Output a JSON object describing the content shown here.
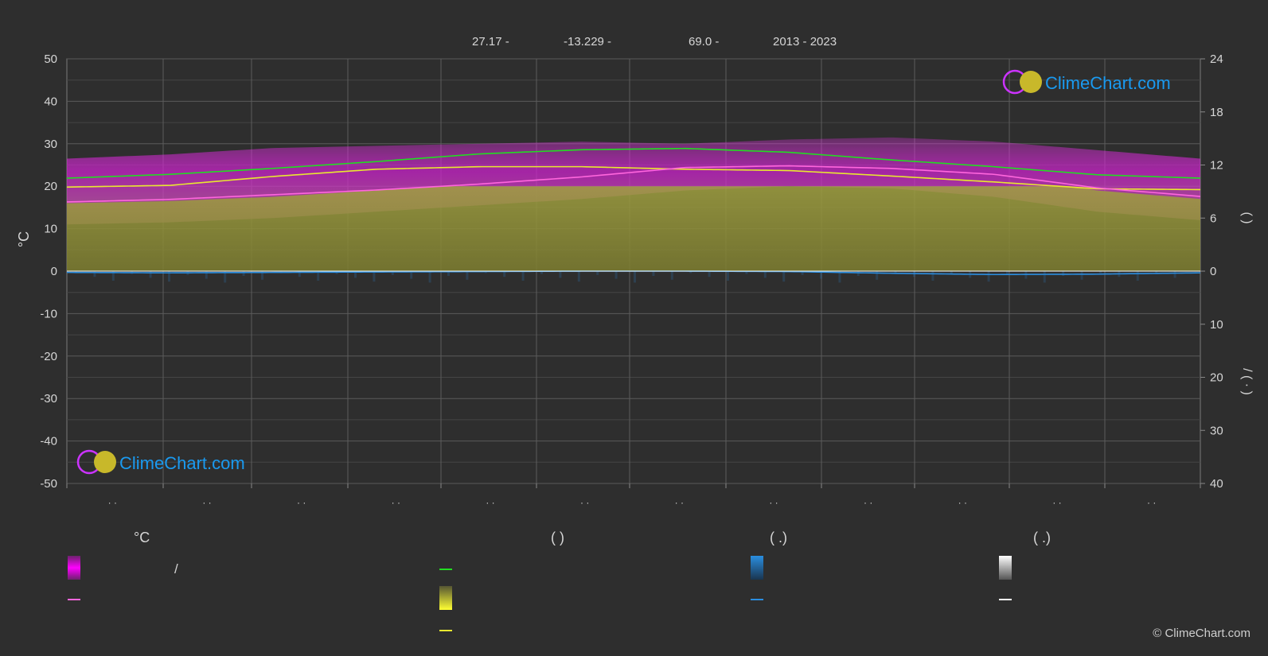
{
  "header": {
    "latitude": "27.17 -",
    "longitude": "-13.229 -",
    "elevation": "69.0 -",
    "years": "2013 - 2023"
  },
  "chart_data": {
    "type": "area",
    "months": [
      "· ·",
      "· ·",
      "· ·",
      "· ·",
      "· ·",
      "· ·",
      "· ·",
      "· ·",
      "· ·",
      "· ·",
      "· ·",
      "· ·"
    ],
    "left_axis": {
      "label": "°C",
      "ylim": [
        -50,
        50
      ],
      "ticks": [
        "50",
        "40",
        "30",
        "20",
        "10",
        "0",
        "-10",
        "-20",
        "-30",
        "-40",
        "-50"
      ]
    },
    "right_axis_top": {
      "label": "(     )",
      "ylim": [
        0,
        24
      ],
      "ticks": [
        "24",
        "18",
        "12",
        "6",
        "0"
      ]
    },
    "right_axis_bottom": {
      "label": "/     ( · )",
      "ylim": [
        0,
        40
      ],
      "ticks": [
        "0",
        "10",
        "20",
        "30",
        "40"
      ]
    },
    "grid": true,
    "series": [
      {
        "key": "daylight",
        "color": "#22dd22",
        "values": [
          21.9,
          22.8,
          24.2,
          25.8,
          27.6,
          28.6,
          28.9,
          28.0,
          26.2,
          24.6,
          22.7,
          21.9
        ]
      },
      {
        "key": "sunshine",
        "color": "#e8e830",
        "values": [
          19.8,
          20.2,
          22.3,
          24.0,
          24.6,
          24.6,
          24.0,
          23.7,
          22.4,
          21.0,
          19.4,
          19.2
        ]
      },
      {
        "key": "mean_temp",
        "color": "#ff66dd",
        "values": [
          16.3,
          16.9,
          18.0,
          19.1,
          20.5,
          22.2,
          24.4,
          24.8,
          24.2,
          22.8,
          19.6,
          17.6
        ]
      },
      {
        "key": "precipitation",
        "color": "#2a8ee0",
        "values": [
          -0.3,
          -0.4,
          -0.3,
          -0.2,
          -0.1,
          0.0,
          0.0,
          -0.1,
          -0.5,
          -0.8,
          -0.7,
          -0.4
        ]
      },
      {
        "key": "snow_mean",
        "color": "#ffffff",
        "values": [
          0,
          0,
          0,
          0,
          0,
          0,
          0,
          0,
          0,
          0,
          0,
          0
        ]
      }
    ],
    "bands": {
      "temp_max": [
        26.5,
        27.5,
        29.0,
        29.5,
        30.0,
        30.5,
        30.0,
        31.0,
        31.5,
        30.5,
        28.5,
        26.5
      ],
      "temp_min": [
        11.0,
        11.5,
        12.5,
        14.0,
        15.5,
        17.0,
        19.0,
        20.0,
        19.5,
        17.5,
        14.0,
        12.0
      ]
    }
  },
  "legend": {
    "col1_title": "°C",
    "col1_row1_text": "/",
    "col2_title": "(          )",
    "col3_title": "(   .)",
    "col4_title": "(   .)"
  },
  "logo": {
    "text": "ClimeChart.com"
  },
  "copyright": "© ClimeChart.com",
  "colors": {
    "background": "#2e2e2e",
    "magenta": "#cc22cc",
    "olive": "#8b8b35",
    "pink": "#d270b0",
    "blue": "#2a8ee0",
    "logo_blue": "#1a9af0"
  }
}
